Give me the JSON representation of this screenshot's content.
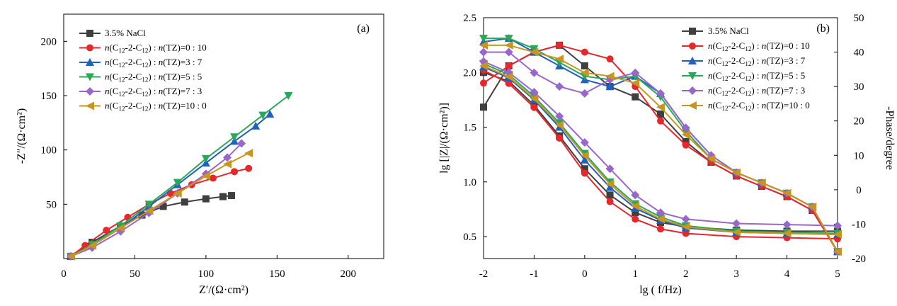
{
  "chart_data": [
    {
      "type": "line",
      "panel_label": "(a)",
      "xlabel": "Z′/(Ω·cm²)",
      "ylabel": "-Z″/(Ω·cm²)",
      "xlim": [
        0,
        225
      ],
      "ylim": [
        0,
        225
      ],
      "xticks": [
        0,
        50,
        100,
        150,
        200
      ],
      "yticks": [
        50,
        100,
        150,
        200
      ],
      "legend_position": "top-left",
      "series": [
        {
          "name": "3.5% NaCl",
          "color": "#3f3f3f",
          "marker": "square",
          "x": [
            5,
            20,
            40,
            55,
            70,
            85,
            100,
            112,
            118
          ],
          "y": [
            2,
            15,
            30,
            40,
            48,
            52,
            55,
            57,
            58
          ]
        },
        {
          "name": "n(C12-2-C12) : n(TZ)=0 : 10",
          "color": "#e8262b",
          "marker": "circle",
          "x": [
            5,
            15,
            30,
            45,
            60,
            75,
            90,
            105,
            120,
            130
          ],
          "y": [
            2,
            12,
            26,
            38,
            50,
            60,
            68,
            74,
            80,
            83
          ]
        },
        {
          "name": "n(C12-2-C12) : n(TZ)=3 : 7",
          "color": "#2060c0",
          "marker": "triangle-up",
          "x": [
            5,
            20,
            40,
            60,
            80,
            100,
            120,
            135,
            145
          ],
          "y": [
            2,
            12,
            28,
            48,
            68,
            88,
            108,
            122,
            133
          ]
        },
        {
          "name": "n(C12-2-C12) : n(TZ)=5 : 5",
          "color": "#2aa85a",
          "marker": "triangle-down",
          "x": [
            5,
            20,
            40,
            60,
            80,
            100,
            120,
            140,
            158
          ],
          "y": [
            2,
            13,
            30,
            50,
            70,
            92,
            112,
            132,
            150
          ]
        },
        {
          "name": "n(C12-2-C12) : n(TZ)=7 : 3",
          "color": "#9966cc",
          "marker": "diamond",
          "x": [
            5,
            20,
            40,
            60,
            80,
            100,
            115,
            125
          ],
          "y": [
            2,
            10,
            25,
            42,
            60,
            78,
            93,
            106
          ]
        },
        {
          "name": "n(C12-2-C12) : n(TZ)=10 : 0",
          "color": "#c8961e",
          "marker": "triangle-left",
          "x": [
            5,
            20,
            40,
            60,
            80,
            100,
            115,
            130
          ],
          "y": [
            2,
            12,
            28,
            44,
            60,
            76,
            87,
            97
          ]
        }
      ]
    },
    {
      "type": "line",
      "panel_label": "(b)",
      "xlabel": "lg ( f/Hz)",
      "ylabel": "lg [|Z|/(Ω·cm²)]",
      "y2label": "-Phase/degree",
      "xlim": [
        -2,
        5
      ],
      "ylim": [
        0.3,
        2.5
      ],
      "y2lim": [
        -20,
        50
      ],
      "xticks": [
        -2,
        -1,
        0,
        1,
        2,
        3,
        4,
        5
      ],
      "yticks": [
        0.5,
        1.0,
        1.5,
        2.0,
        2.5
      ],
      "y2ticks": [
        -20,
        -10,
        0,
        10,
        20,
        30,
        40,
        50
      ],
      "legend_position": "top-right",
      "series": [
        {
          "name": "3.5% NaCl",
          "color": "#3f3f3f",
          "marker": "square",
          "impedance": {
            "x": [
              -2,
              -1.5,
              -1,
              -0.5,
              0,
              0.5,
              1,
              1.5,
              2,
              3,
              4,
              5
            ],
            "y": [
              2.0,
              1.92,
              1.7,
              1.42,
              1.12,
              0.88,
              0.72,
              0.63,
              0.59,
              0.56,
              0.55,
              0.55
            ]
          },
          "phase": {
            "x": [
              -2,
              -1.5,
              -1,
              -0.5,
              0,
              0.5,
              1,
              1.5,
              2,
              2.5,
              3,
              3.5,
              4,
              4.5,
              5
            ],
            "y": [
              24,
              36,
              40,
              42,
              36,
              30,
              27,
              22,
              14,
              8,
              4,
              1,
              -2,
              -6,
              -18
            ]
          }
        },
        {
          "name": "n(C12-2-C12) : n(TZ)=0 : 10",
          "color": "#e8262b",
          "marker": "circle",
          "impedance": {
            "x": [
              -2,
              -1.5,
              -1,
              -0.5,
              0,
              0.5,
              1,
              1.5,
              2,
              3,
              4,
              5
            ],
            "y": [
              2.02,
              1.9,
              1.68,
              1.4,
              1.08,
              0.82,
              0.66,
              0.57,
              0.53,
              0.5,
              0.49,
              0.48
            ]
          },
          "phase": {
            "x": [
              -2,
              -1.5,
              -1,
              -0.5,
              0,
              0.5,
              1,
              1.5,
              2,
              2.5,
              3,
              3.5,
              4,
              4.5,
              5
            ],
            "y": [
              31,
              36,
              40,
              42,
              40,
              38,
              30,
              20,
              13,
              8,
              4,
              1,
              -2,
              -6,
              -18
            ]
          }
        },
        {
          "name": "n(C12-2-C12) : n(TZ)=3 : 7",
          "color": "#2060c0",
          "marker": "triangle-up",
          "impedance": {
            "x": [
              -2,
              -1.5,
              -1,
              -0.5,
              0,
              0.5,
              1,
              1.5,
              2,
              3,
              4,
              5
            ],
            "y": [
              2.05,
              1.95,
              1.75,
              1.5,
              1.2,
              0.95,
              0.76,
              0.65,
              0.58,
              0.54,
              0.53,
              0.52
            ]
          },
          "phase": {
            "x": [
              -2,
              -1.5,
              -1,
              -0.5,
              0,
              0.5,
              1,
              1.5,
              2,
              2.5,
              3,
              3.5,
              4,
              4.5,
              5
            ],
            "y": [
              43,
              44,
              40,
              36,
              32,
              30,
              33,
              28,
              18,
              10,
              5,
              2,
              -1,
              -5,
              -18
            ]
          }
        },
        {
          "name": "n(C12-2-C12) : n(TZ)=5 : 5",
          "color": "#2aa85a",
          "marker": "triangle-down",
          "impedance": {
            "x": [
              -2,
              -1.5,
              -1,
              -0.5,
              0,
              0.5,
              1,
              1.5,
              2,
              3,
              4,
              5
            ],
            "y": [
              2.08,
              1.98,
              1.78,
              1.54,
              1.26,
              1.0,
              0.8,
              0.68,
              0.6,
              0.55,
              0.54,
              0.53
            ]
          },
          "phase": {
            "x": [
              -2,
              -1.5,
              -1,
              -0.5,
              0,
              0.5,
              1,
              1.5,
              2,
              2.5,
              3,
              3.5,
              4,
              4.5,
              5
            ],
            "y": [
              44,
              44,
              41,
              37,
              33,
              32,
              33,
              27,
              17,
              9,
              5,
              2,
              -1,
              -5,
              -18
            ]
          }
        },
        {
          "name": "n(C12-2-C12) : n(TZ)=7 : 3",
          "color": "#9966cc",
          "marker": "diamond",
          "impedance": {
            "x": [
              -2,
              -1.5,
              -1,
              -0.5,
              0,
              0.5,
              1,
              1.5,
              2,
              3,
              4,
              5
            ],
            "y": [
              2.1,
              2.0,
              1.82,
              1.6,
              1.36,
              1.12,
              0.88,
              0.72,
              0.66,
              0.62,
              0.61,
              0.6
            ]
          },
          "phase": {
            "x": [
              -2,
              -1.5,
              -1,
              -0.5,
              0,
              0.5,
              1,
              1.5,
              2,
              2.5,
              3,
              3.5,
              4,
              4.5,
              5
            ],
            "y": [
              40,
              40,
              34,
              30,
              28,
              32,
              34,
              28,
              18,
              10,
              5,
              2,
              -1,
              -5,
              -18
            ]
          }
        },
        {
          "name": "n(C12-2-C12) : n(TZ)=10 : 0",
          "color": "#c8961e",
          "marker": "triangle-left",
          "impedance": {
            "x": [
              -2,
              -1.5,
              -1,
              -0.5,
              0,
              0.5,
              1,
              1.5,
              2,
              3,
              4,
              5
            ],
            "y": [
              2.06,
              1.96,
              1.76,
              1.52,
              1.24,
              0.98,
              0.78,
              0.66,
              0.59,
              0.54,
              0.53,
              0.52
            ]
          },
          "phase": {
            "x": [
              -2,
              -1.5,
              -1,
              -0.5,
              0,
              0.5,
              1,
              1.5,
              2,
              2.5,
              3,
              3.5,
              4,
              4.5,
              5
            ],
            "y": [
              42,
              42,
              40,
              38,
              34,
              33,
              31,
              24,
              16,
              9,
              5,
              2,
              -1,
              -5,
              -18
            ]
          }
        }
      ]
    }
  ]
}
